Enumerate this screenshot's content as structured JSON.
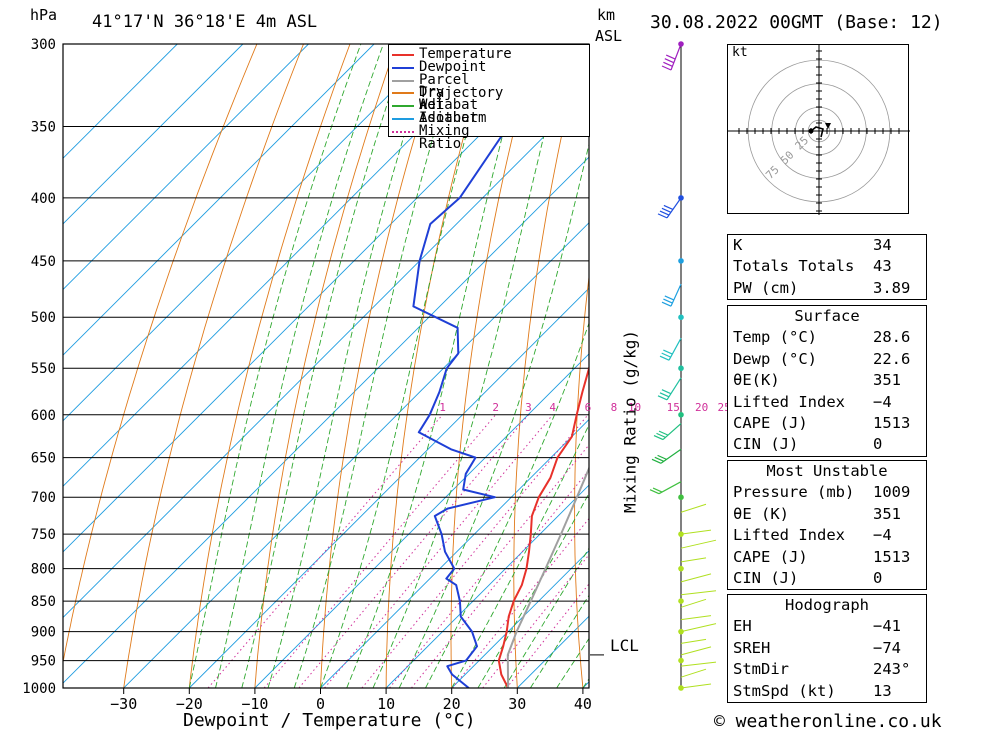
{
  "header": {
    "hpa_label": "hPa",
    "location": "41°17'N  36°18'E  4m  ASL",
    "km_label": "km",
    "asl_label": "ASL",
    "datetime": "30.08.2022  00GMT  (Base: 12)"
  },
  "chart_data": {
    "type": "skew-t log-p",
    "xlabel": "Dewpoint / Temperature (°C)",
    "ylabel": "hPa",
    "x_ticks": [
      -30,
      -20,
      -10,
      0,
      10,
      20,
      30,
      40
    ],
    "pressure_levels": [
      300,
      350,
      400,
      450,
      500,
      550,
      600,
      650,
      700,
      750,
      800,
      850,
      900,
      950,
      1000
    ],
    "mixing_ratio_axis_label": "Mixing Ratio (g/kg)",
    "mixing_ratio_labels": [
      "1",
      "2",
      "3",
      "4",
      "6",
      "8",
      "10",
      "15",
      "20",
      "25"
    ],
    "mixing_ratio_values": [
      1,
      2,
      3,
      4,
      6,
      8,
      10,
      15,
      20,
      25
    ],
    "lcl_label": "LCL",
    "lcl_pressure": 940,
    "legend": {
      "placement": "top-right",
      "entries": [
        {
          "label": "Temperature",
          "color": "#e8312a",
          "style": "solid"
        },
        {
          "label": "Dewpoint",
          "color": "#1f3fd6",
          "style": "solid"
        },
        {
          "label": "Parcel Trajectory",
          "color": "#a0a0a0",
          "style": "solid"
        },
        {
          "label": "Dry Adiabat",
          "color": "#e07a1a",
          "style": "solid"
        },
        {
          "label": "Wet Adiabat",
          "color": "#2fa82f",
          "style": "solid"
        },
        {
          "label": "Isotherm",
          "color": "#1e9ce0",
          "style": "solid"
        },
        {
          "label": "Mixing Ratio",
          "color": "#d0309a",
          "style": "dotted"
        }
      ]
    },
    "series": [
      {
        "name": "Temperature",
        "color": "#e8312a",
        "points": [
          [
            1000,
            28.6
          ],
          [
            975,
            25.5
          ],
          [
            950,
            23.0
          ],
          [
            925,
            21.5
          ],
          [
            900,
            19.8
          ],
          [
            875,
            17.8
          ],
          [
            850,
            16.2
          ],
          [
            825,
            15.0
          ],
          [
            800,
            13.2
          ],
          [
            775,
            11.0
          ],
          [
            750,
            8.6
          ],
          [
            725,
            6.0
          ],
          [
            700,
            4.2
          ],
          [
            675,
            3.0
          ],
          [
            650,
            1.0
          ],
          [
            625,
            0.0
          ],
          [
            600,
            -2.6
          ],
          [
            575,
            -5.2
          ],
          [
            550,
            -7.8
          ],
          [
            525,
            -10.4
          ],
          [
            500,
            -13.0
          ],
          [
            475,
            -16.0
          ],
          [
            450,
            -19.2
          ],
          [
            425,
            -22.8
          ],
          [
            400,
            -26.5
          ],
          [
            375,
            -29.8
          ],
          [
            350,
            -34.2
          ],
          [
            325,
            -38.8
          ],
          [
            300,
            -43.5
          ]
        ]
      },
      {
        "name": "Dewpoint",
        "color": "#1f3fd6",
        "points": [
          [
            1000,
            22.6
          ],
          [
            975,
            18.0
          ],
          [
            960,
            16.0
          ],
          [
            950,
            18.0
          ],
          [
            925,
            17.5
          ],
          [
            900,
            14.5
          ],
          [
            875,
            10.5
          ],
          [
            850,
            8.0
          ],
          [
            825,
            5.0
          ],
          [
            815,
            2.5
          ],
          [
            800,
            2.2
          ],
          [
            775,
            -1.8
          ],
          [
            750,
            -5.0
          ],
          [
            725,
            -8.8
          ],
          [
            715,
            -8.0
          ],
          [
            700,
            -2.5
          ],
          [
            690,
            -8.5
          ],
          [
            670,
            -10.5
          ],
          [
            650,
            -11.5
          ],
          [
            640,
            -16.5
          ],
          [
            620,
            -24.0
          ],
          [
            600,
            -25.0
          ],
          [
            575,
            -27.0
          ],
          [
            550,
            -29.5
          ],
          [
            535,
            -30.0
          ],
          [
            510,
            -34.0
          ],
          [
            490,
            -44.0
          ],
          [
            450,
            -50.0
          ],
          [
            420,
            -54.0
          ],
          [
            400,
            -53.5
          ],
          [
            350,
            -57.0
          ],
          [
            300,
            -62.0
          ]
        ]
      },
      {
        "name": "Parcel Trajectory",
        "color": "#a0a0a0",
        "points": [
          [
            1000,
            28.6
          ],
          [
            940,
            23.5
          ],
          [
            900,
            21.3
          ],
          [
            850,
            18.8
          ],
          [
            800,
            16.1
          ],
          [
            750,
            13.2
          ],
          [
            700,
            10.0
          ],
          [
            650,
            6.5
          ],
          [
            600,
            2.6
          ],
          [
            550,
            -1.9
          ],
          [
            500,
            -7.0
          ],
          [
            450,
            -13.0
          ],
          [
            400,
            -20.0
          ],
          [
            375,
            -24.5
          ]
        ]
      }
    ],
    "hodograph": {
      "unit_label": "kt",
      "ring_labels": [
        "25",
        "50",
        "75"
      ],
      "ring_values": [
        25,
        50,
        75
      ]
    },
    "wind_axis": {
      "levels": [
        300,
        400,
        450,
        500,
        550,
        600,
        700,
        750,
        800,
        850,
        900,
        950,
        1000
      ]
    }
  },
  "indices": {
    "rows": [
      {
        "label": "K",
        "value": "34"
      },
      {
        "label": "Totals Totals",
        "value": "43"
      },
      {
        "label": "PW (cm)",
        "value": "3.89"
      }
    ]
  },
  "surface": {
    "title": "Surface",
    "rows": [
      {
        "label": "Temp (°C)",
        "value": "28.6"
      },
      {
        "label": "Dewp (°C)",
        "value": "22.6"
      },
      {
        "label": "θE(K)",
        "value": "351"
      },
      {
        "label": "Lifted Index",
        "value": "-4"
      },
      {
        "label": "CAPE (J)",
        "value": "1513"
      },
      {
        "label": "CIN (J)",
        "value": "0"
      }
    ]
  },
  "most_unstable": {
    "title": "Most Unstable",
    "rows": [
      {
        "label": "Pressure (mb)",
        "value": "1009"
      },
      {
        "label": "θE (K)",
        "value": "351"
      },
      {
        "label": "Lifted Index",
        "value": "-4"
      },
      {
        "label": "CAPE (J)",
        "value": "1513"
      },
      {
        "label": "CIN (J)",
        "value": "0"
      }
    ]
  },
  "hodograph_table": {
    "title": "Hodograph",
    "rows": [
      {
        "label": "EH",
        "value": "-41"
      },
      {
        "label": "SREH",
        "value": "-74"
      },
      {
        "label": "StmDir",
        "value": "243°"
      },
      {
        "label": "StmSpd (kt)",
        "value": "13"
      }
    ]
  },
  "footer": {
    "copyright": "© weatheronline.co.uk"
  }
}
